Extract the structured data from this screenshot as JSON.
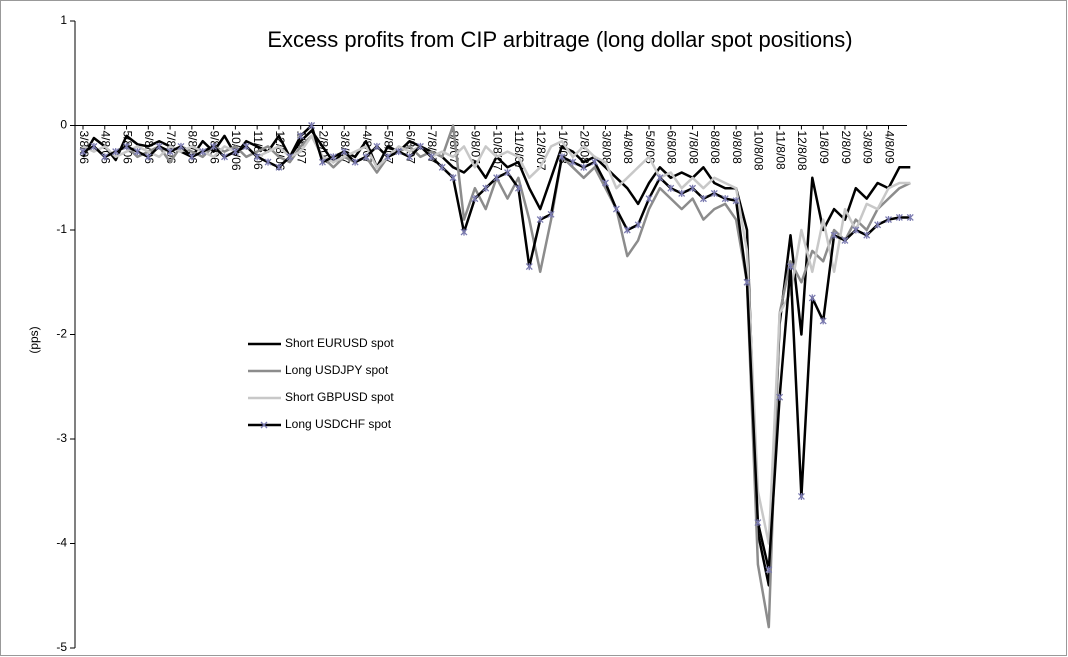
{
  "chart_data": {
    "type": "line",
    "title": "Excess profits from CIP arbitrage (long dollar spot positions)",
    "y_label": "(pps)",
    "categories": [
      "3/8/06",
      null,
      "4/8/06",
      null,
      "5/8/06",
      null,
      "6/8/06",
      null,
      "7/8/06",
      null,
      "8/8/06",
      null,
      "9/8/06",
      null,
      "10/8/06",
      null,
      "11/8/06",
      null,
      "12/8/06",
      null,
      "1/8/07",
      null,
      "2/8/07",
      null,
      "3/8/07",
      null,
      "4/8/07",
      null,
      "5/8/07",
      null,
      "6/8/07",
      null,
      "7/8/07",
      null,
      "8/8/07",
      null,
      "9/8/07",
      null,
      "10/8/07",
      null,
      "11/8/07",
      null,
      "12/8/07",
      null,
      "1/8/08",
      null,
      "2/8/08",
      null,
      "3/8/08",
      null,
      "4/8/08",
      null,
      "5/8/08",
      null,
      "6/8/08",
      null,
      "7/8/08",
      null,
      "8/8/08",
      null,
      "9/8/08",
      null,
      "10/8/08",
      null,
      "11/8/08",
      null,
      "12/8/08",
      null,
      "1/8/09",
      null,
      "2/8/09",
      null,
      "3/8/09",
      null,
      "4/8/09",
      null,
      null
    ],
    "series": [
      {
        "name": "Short EURUSD spot",
        "color": "#000000",
        "values": [
          -0.3,
          -0.12,
          -0.2,
          -0.33,
          -0.1,
          -0.18,
          -0.2,
          -0.15,
          -0.2,
          -0.25,
          -0.3,
          -0.15,
          -0.25,
          -0.1,
          -0.28,
          -0.15,
          -0.2,
          -0.25,
          -0.1,
          -0.3,
          -0.15,
          -0.05,
          -0.2,
          -0.35,
          -0.25,
          -0.3,
          -0.15,
          -0.4,
          -0.2,
          -0.25,
          -0.15,
          -0.2,
          -0.25,
          -0.3,
          -0.4,
          -0.45,
          -0.35,
          -0.5,
          -0.3,
          -0.4,
          -0.35,
          -0.6,
          -0.8,
          -0.5,
          -0.2,
          -0.25,
          -0.35,
          -0.3,
          -0.4,
          -0.5,
          -0.6,
          -0.75,
          -0.55,
          -0.4,
          -0.5,
          -0.45,
          -0.5,
          -0.4,
          -0.55,
          -0.6,
          -0.6,
          -1.0,
          -3.9,
          -4.4,
          -1.9,
          -1.05,
          -2.0,
          -0.5,
          -1.0,
          -0.8,
          -0.9,
          -0.6,
          -0.7,
          -0.55,
          -0.6,
          -0.4,
          -0.4
        ]
      },
      {
        "name": "Long USDJPY spot",
        "color": "#8c8c8c",
        "values": [
          -0.25,
          -0.2,
          -0.3,
          -0.25,
          -0.2,
          -0.3,
          -0.25,
          -0.2,
          -0.35,
          -0.2,
          -0.25,
          -0.3,
          -0.2,
          -0.25,
          -0.2,
          -0.3,
          -0.25,
          -0.2,
          -0.3,
          -0.35,
          -0.2,
          -0.1,
          -0.3,
          -0.4,
          -0.3,
          -0.35,
          -0.3,
          -0.45,
          -0.3,
          -0.25,
          -0.2,
          -0.3,
          -0.25,
          -0.3,
          0,
          -0.9,
          -0.6,
          -0.8,
          -0.5,
          -0.7,
          -0.5,
          -0.9,
          -1.4,
          -0.9,
          -0.3,
          -0.4,
          -0.5,
          -0.4,
          -0.6,
          -0.8,
          -1.25,
          -1.1,
          -0.8,
          -0.6,
          -0.7,
          -0.8,
          -0.7,
          -0.9,
          -0.8,
          -0.75,
          -0.9,
          -1.5,
          -4.2,
          -4.8,
          -1.8,
          -1.3,
          -1.5,
          -1.2,
          -1.3,
          -1.0,
          -1.1,
          -0.9,
          -1.0,
          -0.8,
          -0.7,
          -0.6,
          -0.55
        ]
      },
      {
        "name": "Short GBPUSD spot",
        "color": "#c8c8c8",
        "values": [
          -0.2,
          -0.25,
          -0.2,
          -0.3,
          -0.25,
          -0.2,
          -0.25,
          -0.3,
          -0.2,
          -0.25,
          -0.2,
          -0.25,
          -0.3,
          -0.2,
          -0.25,
          -0.2,
          -0.3,
          -0.25,
          -0.2,
          -0.3,
          -0.25,
          -0.1,
          -0.3,
          -0.35,
          -0.3,
          -0.25,
          -0.2,
          -0.4,
          -0.3,
          -0.2,
          -0.25,
          -0.2,
          -0.3,
          -0.25,
          -0.3,
          -0.2,
          -0.4,
          -0.2,
          -0.3,
          -0.25,
          -0.3,
          -0.5,
          -0.4,
          -0.2,
          -0.15,
          -0.3,
          -0.2,
          -0.3,
          -0.35,
          -0.6,
          -0.5,
          -0.4,
          -0.3,
          -0.5,
          -0.45,
          -0.6,
          -0.5,
          -0.6,
          -0.5,
          -0.55,
          -0.6,
          -1.2,
          -3.5,
          -4.0,
          -1.8,
          -1.6,
          -1.0,
          -1.4,
          -0.9,
          -1.4,
          -0.8,
          -1.0,
          -0.75,
          -0.8,
          -0.6,
          -0.55,
          -0.55
        ]
      },
      {
        "name": "Long USDCHF spot",
        "color": "#000000",
        "marker_color": "#7a7ab0",
        "values": [
          -0.25,
          -0.2,
          -0.3,
          -0.25,
          -0.2,
          -0.25,
          -0.3,
          -0.2,
          -0.25,
          -0.2,
          -0.3,
          -0.25,
          -0.2,
          -0.3,
          -0.25,
          -0.2,
          -0.3,
          -0.35,
          -0.4,
          -0.3,
          -0.1,
          0,
          -0.35,
          -0.3,
          -0.25,
          -0.35,
          -0.3,
          -0.2,
          -0.3,
          -0.25,
          -0.3,
          -0.2,
          -0.3,
          -0.4,
          -0.5,
          -1.02,
          -0.7,
          -0.6,
          -0.5,
          -0.45,
          -0.6,
          -1.35,
          -0.9,
          -0.85,
          -0.3,
          -0.35,
          -0.4,
          -0.35,
          -0.55,
          -0.8,
          -1.0,
          -0.95,
          -0.7,
          -0.5,
          -0.6,
          -0.65,
          -0.6,
          -0.7,
          -0.65,
          -0.7,
          -0.72,
          -1.5,
          -3.8,
          -4.25,
          -2.6,
          -1.35,
          -3.55,
          -1.65,
          -1.87,
          -1.05,
          -1.1,
          -1.0,
          -1.05,
          -0.95,
          -0.9,
          -0.88,
          -0.88
        ]
      }
    ],
    "ylim": [
      -5,
      1
    ],
    "yticks": [
      -5,
      -4,
      -3,
      -2,
      -1,
      0,
      1
    ],
    "grid": false,
    "legend": "left"
  }
}
